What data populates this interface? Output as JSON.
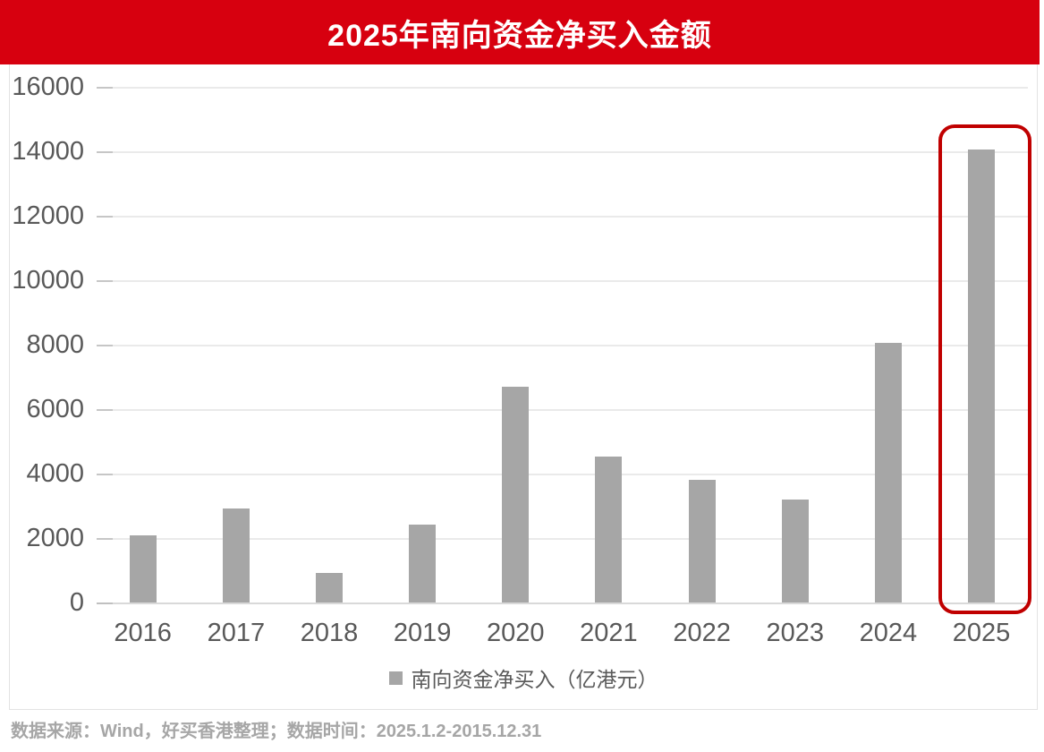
{
  "banner": {
    "title": "2025年南向资金净买入金额",
    "bg_color": "#d7000f",
    "text_color": "#ffffff"
  },
  "chart_data": {
    "type": "bar",
    "title": "2025年南向资金净买入金额",
    "categories": [
      "2016",
      "2017",
      "2018",
      "2019",
      "2020",
      "2021",
      "2022",
      "2023",
      "2024",
      "2025"
    ],
    "values": [
      2090,
      2930,
      920,
      2430,
      6700,
      4530,
      3810,
      3190,
      8060,
      14050
    ],
    "series_name": "南向资金净买入（亿港元）",
    "xlabel": "",
    "ylabel": "",
    "ylim": [
      0,
      16000
    ],
    "yticks": [
      0,
      2000,
      4000,
      6000,
      8000,
      10000,
      12000,
      14000,
      16000
    ],
    "grid": true,
    "legend_position": "bottom",
    "bar_color": "#a6a6a6",
    "axis_text_color": "#595959",
    "gridline_color": "#eaeaea",
    "highlight": {
      "category": "2025",
      "color": "#c00000"
    }
  },
  "legend": {
    "label": "南向资金净买入（亿港元）",
    "marker_color": "#a6a6a6"
  },
  "footer": {
    "text": "数据来源：Wind，好买香港整理；数据时间：2025.1.2-2015.12.31"
  }
}
